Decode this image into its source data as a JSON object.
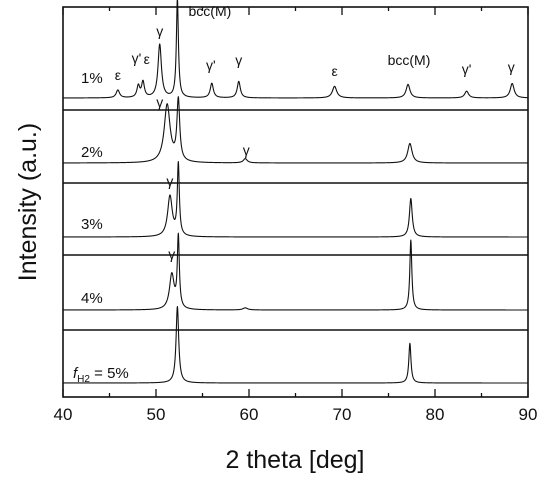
{
  "chart_data": {
    "type": "line",
    "title": "",
    "xlabel": "2 theta [deg]",
    "ylabel": "Intensity (a.u.)",
    "xlim": [
      40,
      90
    ],
    "xticks": [
      40,
      50,
      60,
      70,
      80,
      90
    ],
    "xtick_labels": [
      "40",
      "50",
      "60",
      "70",
      "80",
      "90"
    ],
    "y_ticks_shown": false,
    "layout": "stacked panels, top to bottom",
    "series": [
      {
        "name": "1%",
        "label_parts": {
          "main": "1%"
        },
        "peaks": [
          {
            "x": 45.9,
            "h": 0.08,
            "w": 0.22
          },
          {
            "x": 48.1,
            "h": 0.12,
            "w": 0.18
          },
          {
            "x": 48.6,
            "h": 0.16,
            "w": 0.18
          },
          {
            "x": 50.4,
            "h": 0.55,
            "w": 0.22
          },
          {
            "x": 52.3,
            "h": 1.02,
            "w": 0.13
          },
          {
            "x": 56.0,
            "h": 0.15,
            "w": 0.2
          },
          {
            "x": 58.9,
            "h": 0.17,
            "w": 0.2
          },
          {
            "x": 69.2,
            "h": 0.12,
            "w": 0.28
          },
          {
            "x": 77.1,
            "h": 0.14,
            "w": 0.25
          },
          {
            "x": 83.4,
            "h": 0.07,
            "w": 0.25
          },
          {
            "x": 88.3,
            "h": 0.15,
            "w": 0.25
          }
        ]
      },
      {
        "name": "2%",
        "label_parts": {
          "main": "2%"
        },
        "peaks": [
          {
            "x": 51.2,
            "h": 0.95,
            "w": 0.38
          },
          {
            "x": 52.4,
            "h": 1.0,
            "w": 0.18
          },
          {
            "x": 59.6,
            "h": 0.07,
            "w": 0.25
          },
          {
            "x": 77.3,
            "h": 0.32,
            "w": 0.28
          }
        ]
      },
      {
        "name": "3%",
        "label_parts": {
          "main": "3%"
        },
        "peaks": [
          {
            "x": 51.5,
            "h": 0.58,
            "w": 0.3
          },
          {
            "x": 52.4,
            "h": 1.02,
            "w": 0.13
          },
          {
            "x": 77.4,
            "h": 0.55,
            "w": 0.18
          }
        ]
      },
      {
        "name": "4%",
        "label_parts": {
          "main": "4%"
        },
        "peaks": [
          {
            "x": 51.7,
            "h": 0.5,
            "w": 0.3
          },
          {
            "x": 52.4,
            "h": 1.02,
            "w": 0.13
          },
          {
            "x": 59.6,
            "h": 0.03,
            "w": 0.3
          },
          {
            "x": 77.4,
            "h": 1.0,
            "w": 0.13
          }
        ]
      },
      {
        "name": "fH2 = 5%",
        "label_parts": {
          "italic": "f",
          "sub": "H2",
          "main": " = 5%"
        },
        "peaks": [
          {
            "x": 52.3,
            "h": 1.02,
            "w": 0.17
          },
          {
            "x": 77.3,
            "h": 0.53,
            "w": 0.14
          }
        ]
      }
    ],
    "annotations": [
      {
        "panel": 0,
        "x": 45.9,
        "text": "ε"
      },
      {
        "panel": 0,
        "x": 47.9,
        "text": "γ'"
      },
      {
        "panel": 0,
        "x": 49.0,
        "text": "ε"
      },
      {
        "panel": 0,
        "x": 50.4,
        "text": "γ"
      },
      {
        "panel": 0,
        "x": 55.9,
        "text": "γ'"
      },
      {
        "panel": 0,
        "x": 58.9,
        "text": "γ"
      },
      {
        "panel": 0,
        "x": 69.2,
        "text": "ε"
      },
      {
        "panel": 0,
        "x": 88.2,
        "text": "γ"
      },
      {
        "panel": 0,
        "x": 83.4,
        "text": "γ'"
      },
      {
        "panel": 0,
        "x": 77.2,
        "text": "bcc(M)"
      },
      {
        "panel": 0,
        "x": 55.8,
        "text": "bcc(M)"
      },
      {
        "panel": 1,
        "x": 50.4,
        "text": "γ"
      },
      {
        "panel": 1,
        "x": 59.7,
        "text": "γ"
      },
      {
        "panel": 2,
        "x": 51.5,
        "text": "γ"
      },
      {
        "panel": 3,
        "x": 51.7,
        "text": "γ"
      }
    ]
  }
}
